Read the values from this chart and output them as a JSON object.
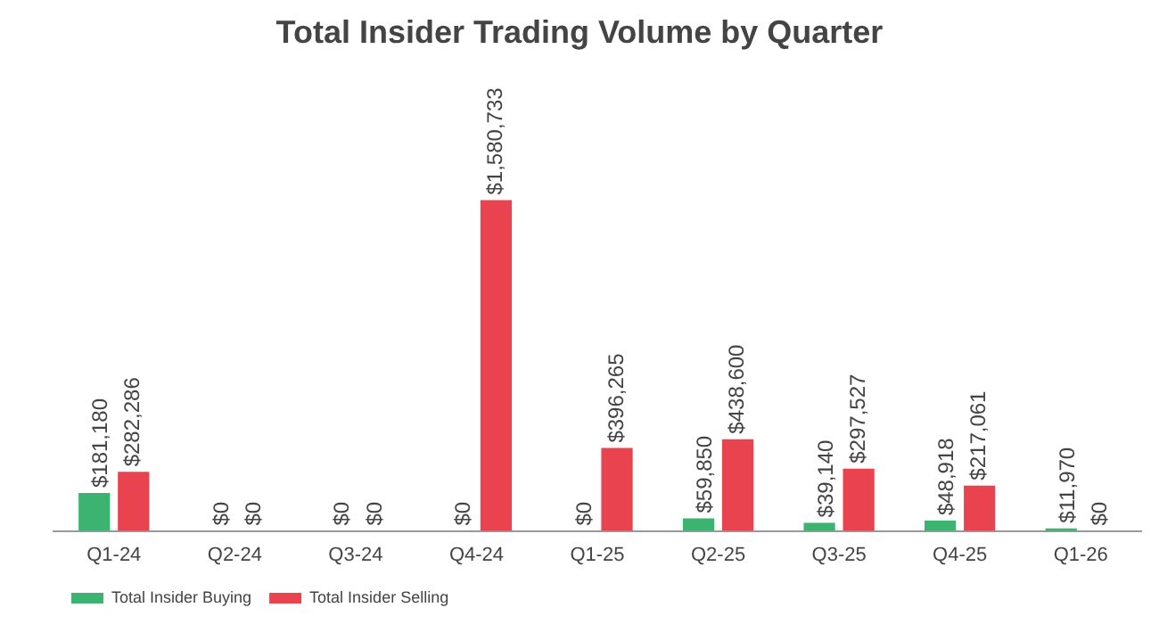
{
  "chart_data": {
    "type": "bar",
    "title": "Total Insider Trading Volume by Quarter",
    "categories": [
      "Q1-24",
      "Q2-24",
      "Q3-24",
      "Q4-24",
      "Q1-25",
      "Q2-25",
      "Q3-25",
      "Q4-25",
      "Q1-26"
    ],
    "series": [
      {
        "name": "Total Insider Buying",
        "color": "#3cb371",
        "values": [
          181180,
          0,
          0,
          0,
          0,
          59850,
          39140,
          48918,
          11970
        ],
        "value_labels": [
          "$181,180",
          "$0",
          "$0",
          "$0",
          "$0",
          "$59,850",
          "$39,140",
          "$48,918",
          "$11,970"
        ]
      },
      {
        "name": "Total Insider Selling",
        "color": "#e8434f",
        "values": [
          282286,
          0,
          0,
          1580733,
          396265,
          438600,
          297527,
          217061,
          0
        ],
        "value_labels": [
          "$282,286",
          "$0",
          "$0",
          "$1,580,733",
          "$396,265",
          "$438,600",
          "$297,527",
          "$217,061",
          "$0"
        ]
      }
    ],
    "legend": "bottom left",
    "grid": false
  }
}
